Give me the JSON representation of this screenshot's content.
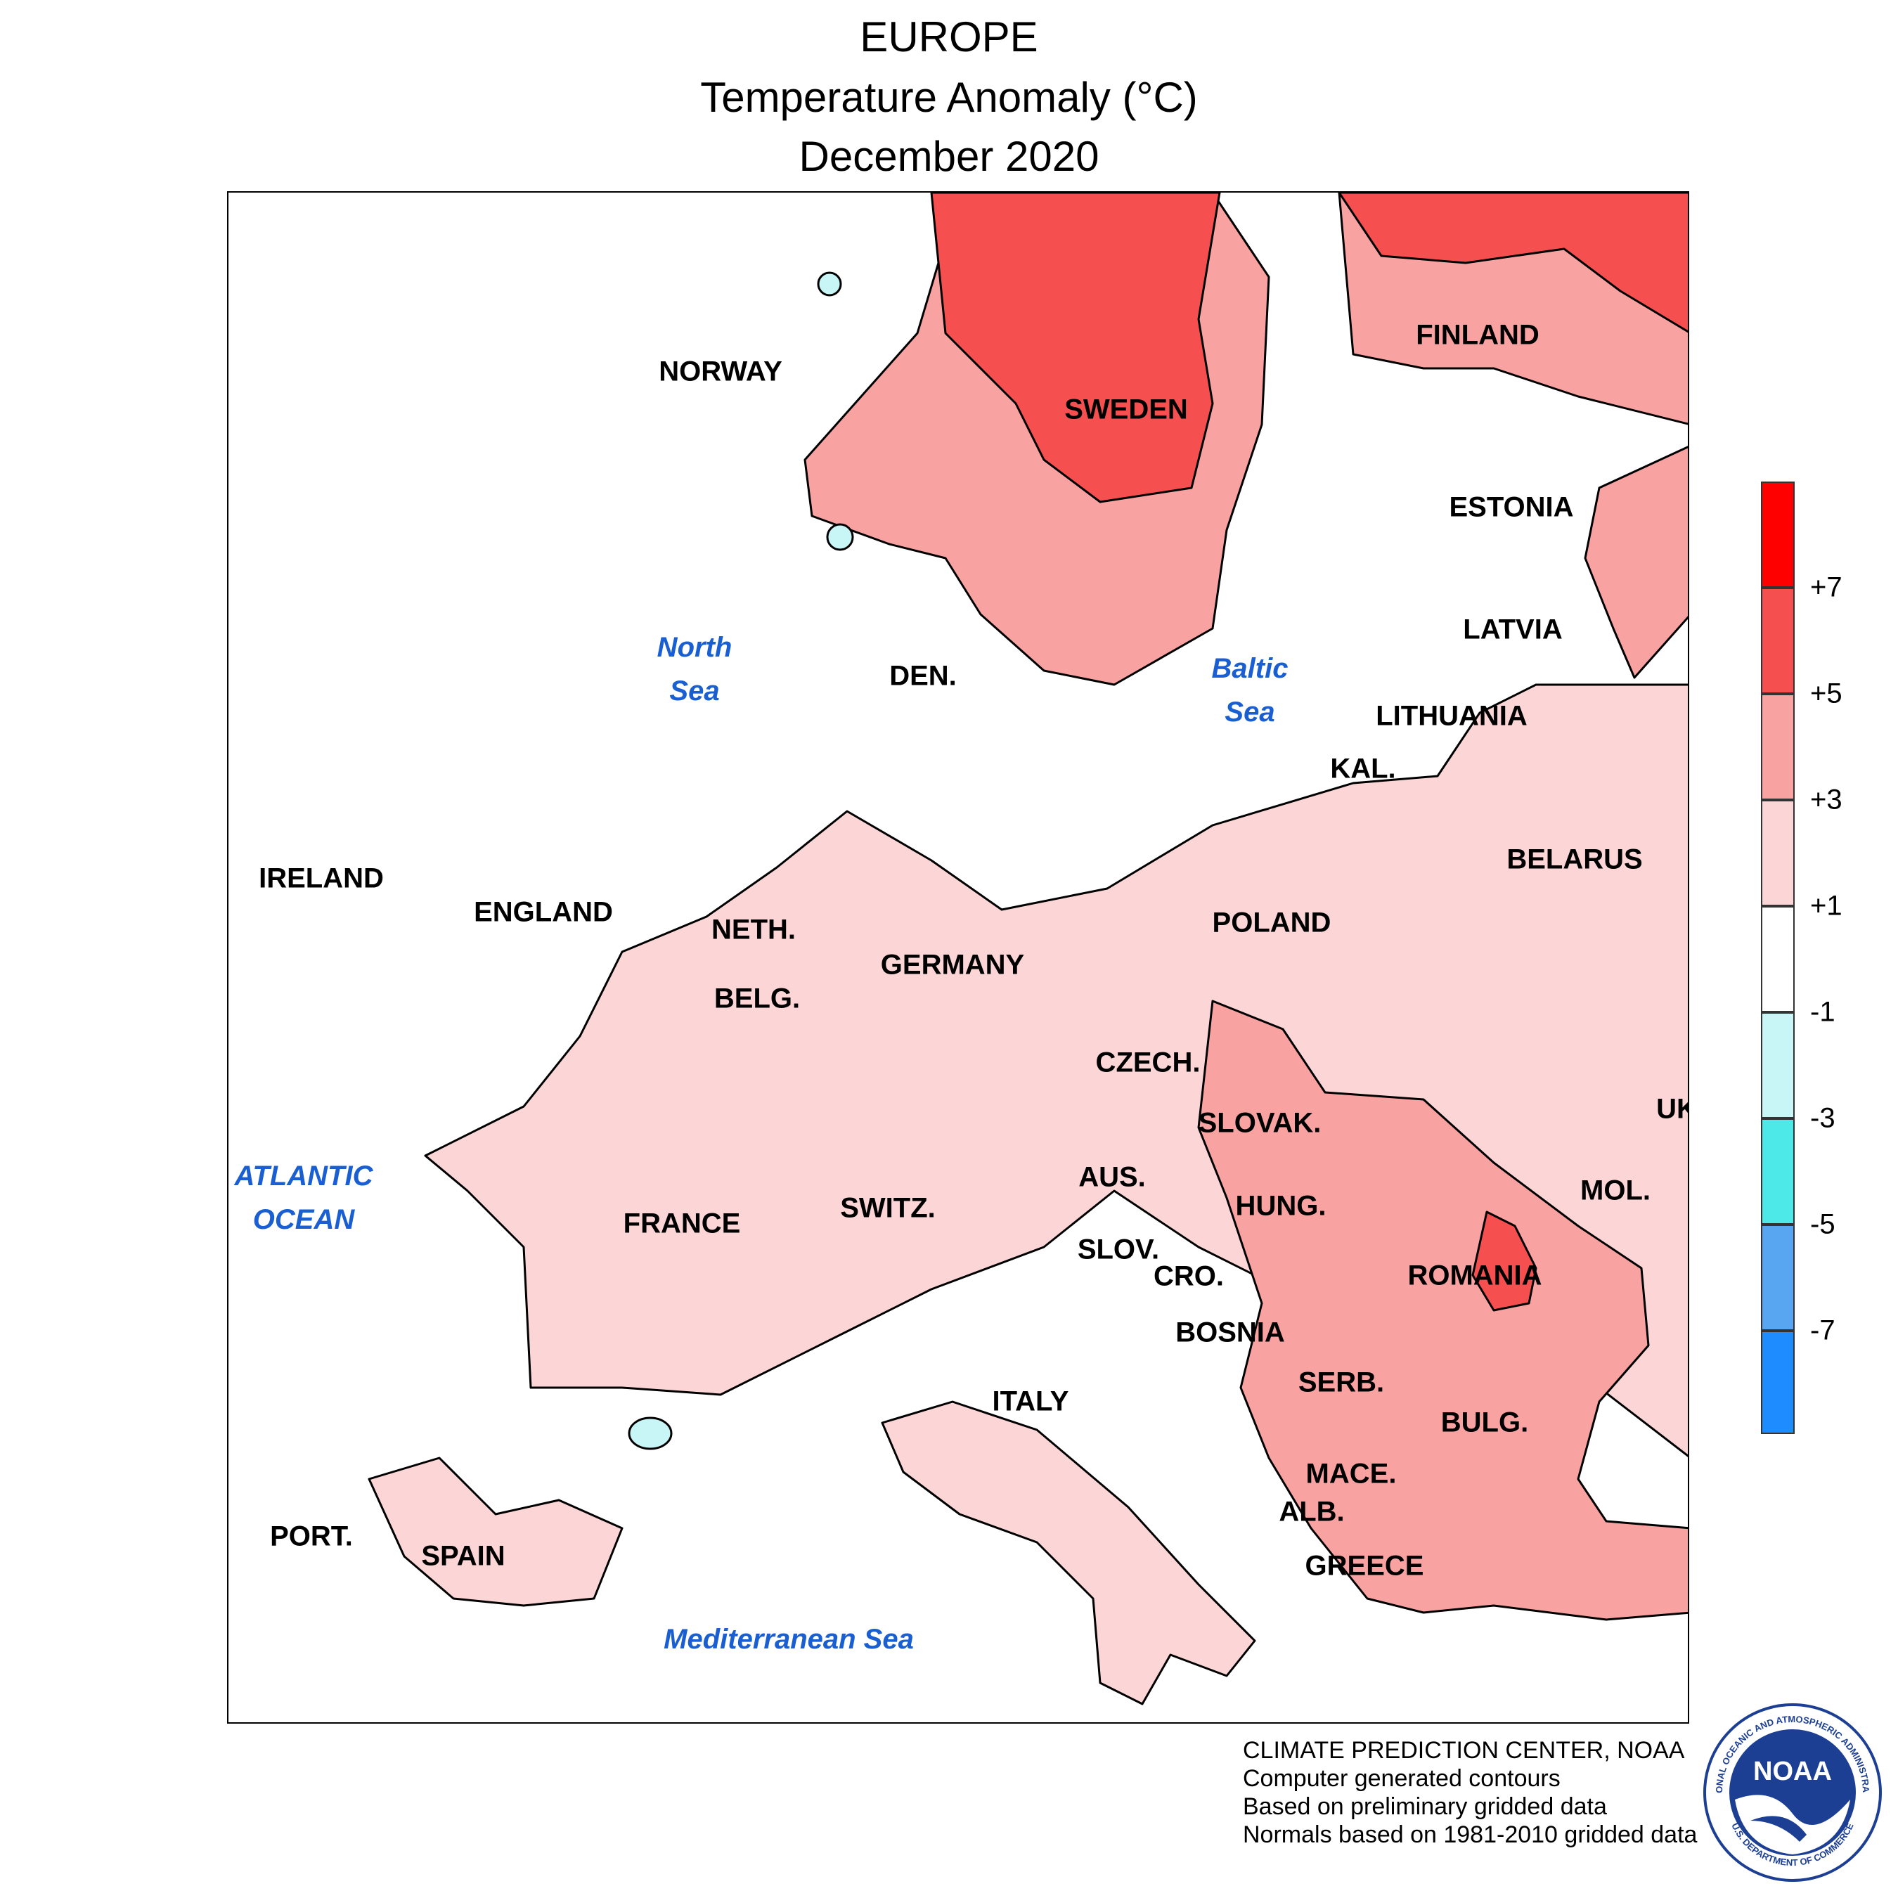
{
  "title": {
    "region": "EUROPE",
    "variable": "Temperature Anomaly (°C)",
    "period": "December 2020"
  },
  "map": {
    "countries": [
      {
        "key": "norway",
        "label": "NORWAY"
      },
      {
        "key": "sweden",
        "label": "SWEDEN"
      },
      {
        "key": "finland",
        "label": "FINLAND"
      },
      {
        "key": "estonia",
        "label": "ESTONIA"
      },
      {
        "key": "latvia",
        "label": "LATVIA"
      },
      {
        "key": "lithuania",
        "label": "LITHUANIA"
      },
      {
        "key": "kaliningrad",
        "label": "KAL."
      },
      {
        "key": "denmark",
        "label": "DEN."
      },
      {
        "key": "ireland",
        "label": "IRELAND"
      },
      {
        "key": "england",
        "label": "ENGLAND"
      },
      {
        "key": "netherlands",
        "label": "NETH."
      },
      {
        "key": "belgium",
        "label": "BELG."
      },
      {
        "key": "germany",
        "label": "GERMANY"
      },
      {
        "key": "poland",
        "label": "POLAND"
      },
      {
        "key": "belarus",
        "label": "BELARUS"
      },
      {
        "key": "czech",
        "label": "CZECH."
      },
      {
        "key": "slovakia",
        "label": "SLOVAK."
      },
      {
        "key": "ukraine",
        "label": "UK"
      },
      {
        "key": "austria",
        "label": "AUS."
      },
      {
        "key": "hungary",
        "label": "HUNG."
      },
      {
        "key": "moldova",
        "label": "MOL."
      },
      {
        "key": "switzerland",
        "label": "SWITZ."
      },
      {
        "key": "france",
        "label": "FRANCE"
      },
      {
        "key": "slovenia",
        "label": "SLOV."
      },
      {
        "key": "croatia",
        "label": "CRO."
      },
      {
        "key": "romania",
        "label": "ROMANIA"
      },
      {
        "key": "bosnia",
        "label": "BOSNIA"
      },
      {
        "key": "serbia",
        "label": "SERB."
      },
      {
        "key": "bulgaria",
        "label": "BULG."
      },
      {
        "key": "italy",
        "label": "ITALY"
      },
      {
        "key": "macedonia",
        "label": "MACE."
      },
      {
        "key": "albania",
        "label": "ALB."
      },
      {
        "key": "greece",
        "label": "GREECE"
      },
      {
        "key": "portugal",
        "label": "PORT."
      },
      {
        "key": "spain",
        "label": "SPAIN"
      }
    ],
    "seas": [
      {
        "key": "north_sea",
        "line1": "North",
        "line2": "Sea"
      },
      {
        "key": "baltic_sea",
        "line1": "Baltic",
        "line2": "Sea"
      },
      {
        "key": "atlantic",
        "line1": "ATLANTIC",
        "line2": "OCEAN"
      },
      {
        "key": "mediterranean",
        "line1": "Mediterranean Sea",
        "line2": ""
      }
    ]
  },
  "legend": {
    "ticks": [
      "+7",
      "+5",
      "+3",
      "+1",
      "-1",
      "-3",
      "-5",
      "-7"
    ],
    "colors": [
      "#ff0000",
      "#f5504f",
      "#f8a3a2",
      "#fcd6d6",
      "#ffffff",
      "#c8f6f6",
      "#4de8e8",
      "#58a6f2",
      "#1e8cff"
    ]
  },
  "colors": {
    "anom_1_3": "#fcd6d6",
    "anom_3_5": "#f8a3a2",
    "anom_5_7": "#f5504f",
    "anom_neg_1_3": "#c8f6f6",
    "sea_label": "#1a5fd1"
  },
  "footer": {
    "line1": "CLIMATE PREDICTION CENTER, NOAA",
    "line2": "Computer generated contours",
    "line3": "Based on preliminary gridded data",
    "line4": "Normals based on 1981-2010 gridded data"
  },
  "logo": {
    "text": "NOAA",
    "ring_top": "NATIONAL OCEANIC AND ATMOSPHERIC ADMINISTRATION",
    "ring_bottom": "U.S. DEPARTMENT OF COMMERCE"
  }
}
